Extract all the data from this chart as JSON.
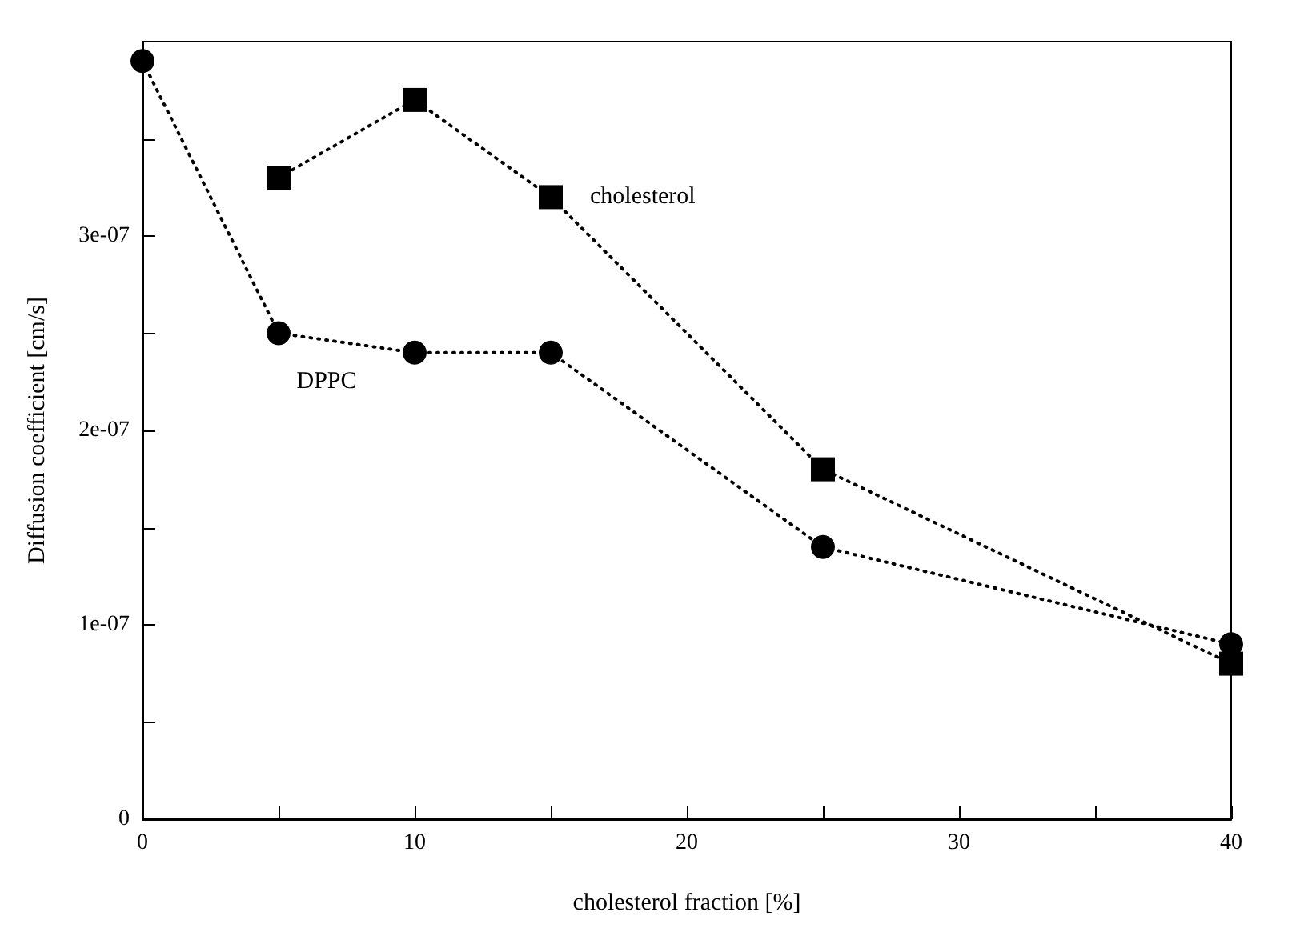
{
  "chart_data": {
    "type": "line",
    "xlabel": "cholesterol fraction [%]",
    "ylabel": "Diffusion coefficient [cm/s]",
    "xlim": [
      0,
      40
    ],
    "xticks": [
      0,
      {
        "value": 5,
        "label": null
      },
      10,
      {
        "value": 15,
        "label": null
      },
      20,
      {
        "value": 25,
        "label": null
      },
      30,
      {
        "value": 35,
        "label": null
      },
      40
    ],
    "ylim": [
      0,
      4e-07
    ],
    "yticks": [
      0,
      {
        "value": 5e-08,
        "label": null
      },
      {
        "value": 1e-07,
        "label": "1e-07"
      },
      {
        "value": 1.5e-07,
        "label": null
      },
      {
        "value": 2e-07,
        "label": "2e-07"
      },
      {
        "value": 2.5e-07,
        "label": null
      },
      {
        "value": 3e-07,
        "label": "3e-07"
      },
      {
        "value": 3.5e-07,
        "label": null
      }
    ],
    "grid": false,
    "legend": false,
    "line_style": "dotted",
    "series": [
      {
        "name": "DPPC",
        "color": "#000000",
        "marker": "circle",
        "x": [
          0,
          5,
          10,
          15,
          25,
          40
        ],
        "values": [
          3.9e-07,
          2.5e-07,
          2.4e-07,
          2.4e-07,
          1.4e-07,
          9e-08
        ]
      },
      {
        "name": "cholesterol",
        "color": "#000000",
        "marker": "square",
        "x": [
          5,
          10,
          15,
          25,
          40
        ],
        "values": [
          3.3e-07,
          3.7e-07,
          3.2e-07,
          1.8e-07,
          8e-08
        ]
      }
    ]
  }
}
